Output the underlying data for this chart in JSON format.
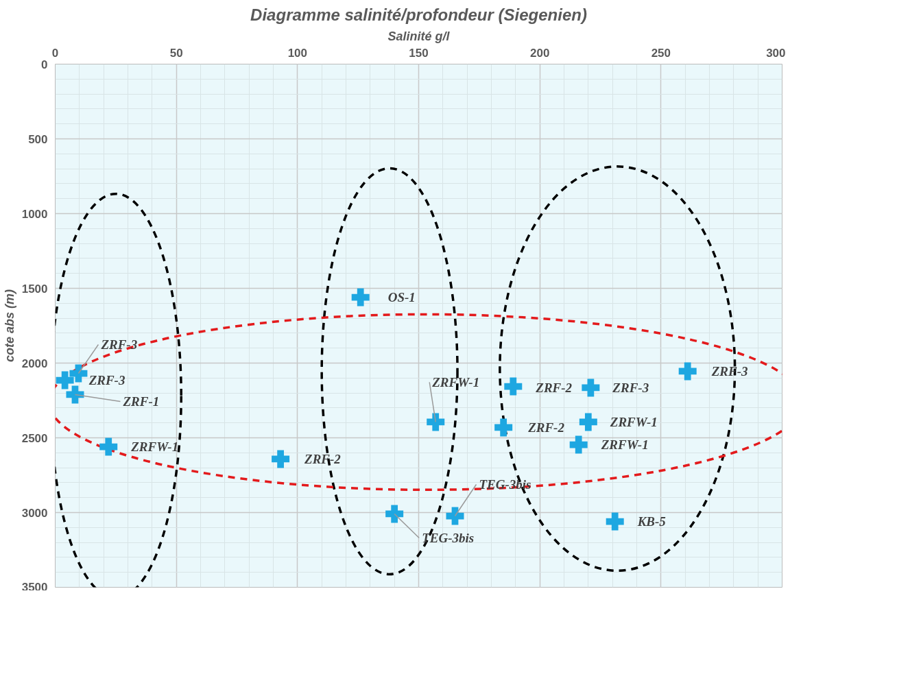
{
  "chart_data": {
    "type": "scatter",
    "title": "Diagramme salinité/profondeur (Siegenien)",
    "xlabel": "Salinité g/l",
    "ylabel": "cote abs (m)",
    "x": [
      126,
      261,
      189,
      221,
      157,
      185,
      220,
      216,
      93,
      22,
      140,
      165,
      231,
      9.6,
      4,
      8.2
    ],
    "series": [
      {
        "color": "#1ea7e1",
        "values": [
          1560,
          2055,
          2156,
          2165,
          2394,
          2431,
          2394,
          2546,
          2642,
          2560,
          3009,
          3023,
          3060,
          2069,
          2115,
          2211
        ]
      }
    ],
    "marker": "cross",
    "grid": true,
    "xlim": [
      0,
      300
    ],
    "ylim": [
      3500,
      0
    ],
    "xticks": [
      0,
      50,
      100,
      150,
      200,
      250,
      300
    ],
    "yticks": [
      0,
      500,
      1000,
      1500,
      2000,
      2500,
      3000,
      3500
    ],
    "annotations": [
      {
        "text": "OS-1",
        "x": 126,
        "y": 1560
      },
      {
        "text": "ZRF-3",
        "x": 261,
        "y": 2055
      },
      {
        "text": "ZRF-2",
        "x": 189,
        "y": 2156
      },
      {
        "text": "ZRF-3",
        "x": 221,
        "y": 2165
      },
      {
        "text": "ZRFW-1",
        "x": 157,
        "y": 2394
      },
      {
        "text": "ZRF-2",
        "x": 185,
        "y": 2431
      },
      {
        "text": "ZRFW-1",
        "x": 220,
        "y": 2394
      },
      {
        "text": "ZRFW-1",
        "x": 216,
        "y": 2546
      },
      {
        "text": "ZRF-2",
        "x": 93,
        "y": 2642
      },
      {
        "text": "ZRFW-1",
        "x": 22,
        "y": 2560
      },
      {
        "text": "TEG-3bis",
        "x": 140,
        "y": 3009
      },
      {
        "text": "TEG-3bis",
        "x": 165,
        "y": 3023
      },
      {
        "text": "KB-5",
        "x": 231,
        "y": 3060
      },
      {
        "text": "ZRF-3",
        "x": 9.6,
        "y": 2069
      },
      {
        "text": "ZRF-3",
        "x": 4,
        "y": 2115
      },
      {
        "text": "ZRF-1",
        "x": 8.2,
        "y": 2211
      }
    ]
  }
}
